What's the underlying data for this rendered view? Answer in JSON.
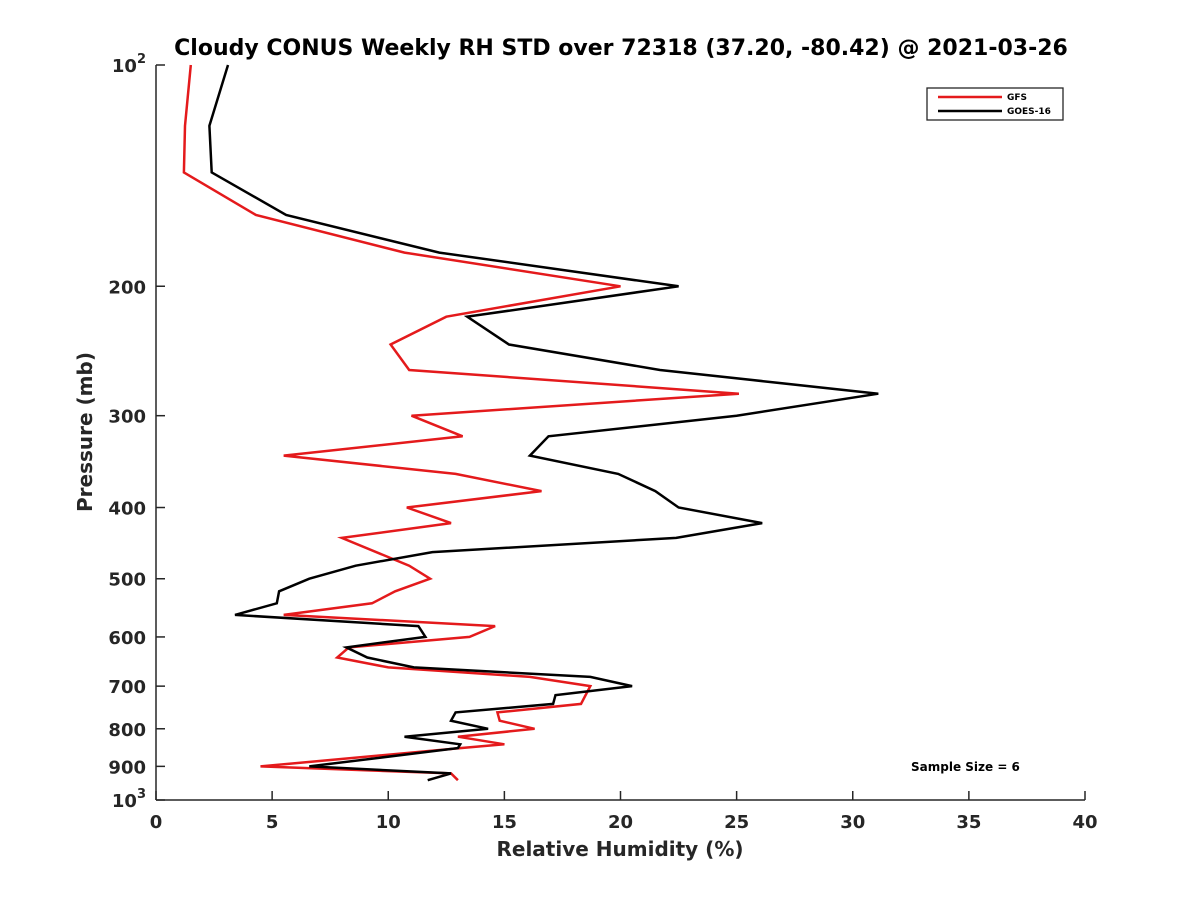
{
  "chart_data": {
    "type": "line",
    "title": "Cloudy CONUS Weekly RH STD over 72318 (37.20, -80.42) @ 2021-03-26",
    "xlabel": "Relative Humidity (%)",
    "ylabel": "Pressure (mb)",
    "xlim": [
      0,
      40
    ],
    "ylim": [
      100,
      1000
    ],
    "yscale": "log",
    "yreversed": true,
    "grid": false,
    "xticks": [
      0,
      5,
      10,
      15,
      20,
      25,
      30,
      35,
      40
    ],
    "xtick_labels": [
      "0",
      "5",
      "10",
      "15",
      "20",
      "25",
      "30",
      "35",
      "40"
    ],
    "yticks": [
      100,
      200,
      300,
      400,
      500,
      600,
      700,
      800,
      900,
      1000
    ],
    "ytick_labels": [
      {
        "base": "10",
        "exp": "2"
      },
      {
        "text": "200"
      },
      {
        "text": "300"
      },
      {
        "text": "400"
      },
      {
        "text": "500"
      },
      {
        "text": "600"
      },
      {
        "text": "700"
      },
      {
        "text": "800"
      },
      {
        "text": "900"
      },
      {
        "base": "10",
        "exp": "3"
      }
    ],
    "legend": {
      "placement": "top-right",
      "entries": [
        "GFS",
        "GOES-16"
      ]
    },
    "annotation": "Sample Size = 6",
    "series": [
      {
        "name": "GFS",
        "color": "#e41a1c",
        "pressure": [
          100,
          121,
          140,
          160,
          180,
          200,
          220,
          240,
          260,
          280,
          300,
          320,
          340,
          360,
          380,
          400,
          420,
          440,
          480,
          500,
          520,
          540,
          560,
          580,
          600,
          620,
          640,
          660,
          680,
          700,
          740,
          760,
          780,
          800,
          820,
          840,
          850,
          900,
          920,
          940
        ],
        "rh": [
          1.5,
          1.25,
          1.2,
          4.3,
          10.7,
          20.0,
          12.5,
          10.1,
          10.9,
          25.1,
          11.0,
          13.2,
          5.5,
          12.9,
          16.6,
          10.8,
          12.7,
          8.0,
          10.9,
          11.8,
          10.3,
          9.3,
          5.5,
          14.6,
          13.5,
          8.3,
          7.8,
          10.0,
          16.1,
          18.7,
          18.3,
          14.7,
          14.8,
          16.3,
          13.0,
          15.0,
          13.1,
          4.5,
          12.7,
          13.0
        ]
      },
      {
        "name": "GOES-16",
        "color": "#000000",
        "pressure": [
          100,
          121,
          140,
          160,
          180,
          200,
          220,
          240,
          260,
          280,
          300,
          320,
          340,
          360,
          380,
          400,
          420,
          440,
          460,
          480,
          500,
          520,
          540,
          560,
          580,
          600,
          620,
          640,
          660,
          680,
          700,
          720,
          740,
          760,
          780,
          800,
          820,
          840,
          850,
          900,
          920,
          940
        ],
        "rh": [
          3.1,
          2.3,
          2.4,
          5.6,
          12.2,
          22.5,
          13.4,
          15.2,
          21.7,
          31.1,
          25.0,
          16.9,
          16.1,
          19.9,
          21.5,
          22.5,
          26.1,
          22.4,
          11.9,
          8.6,
          6.6,
          5.3,
          5.2,
          3.4,
          11.3,
          11.6,
          8.2,
          9.1,
          11.1,
          18.7,
          20.5,
          17.2,
          17.1,
          12.9,
          12.7,
          14.3,
          10.7,
          13.1,
          13.0,
          6.6,
          12.7,
          11.7
        ]
      }
    ]
  }
}
